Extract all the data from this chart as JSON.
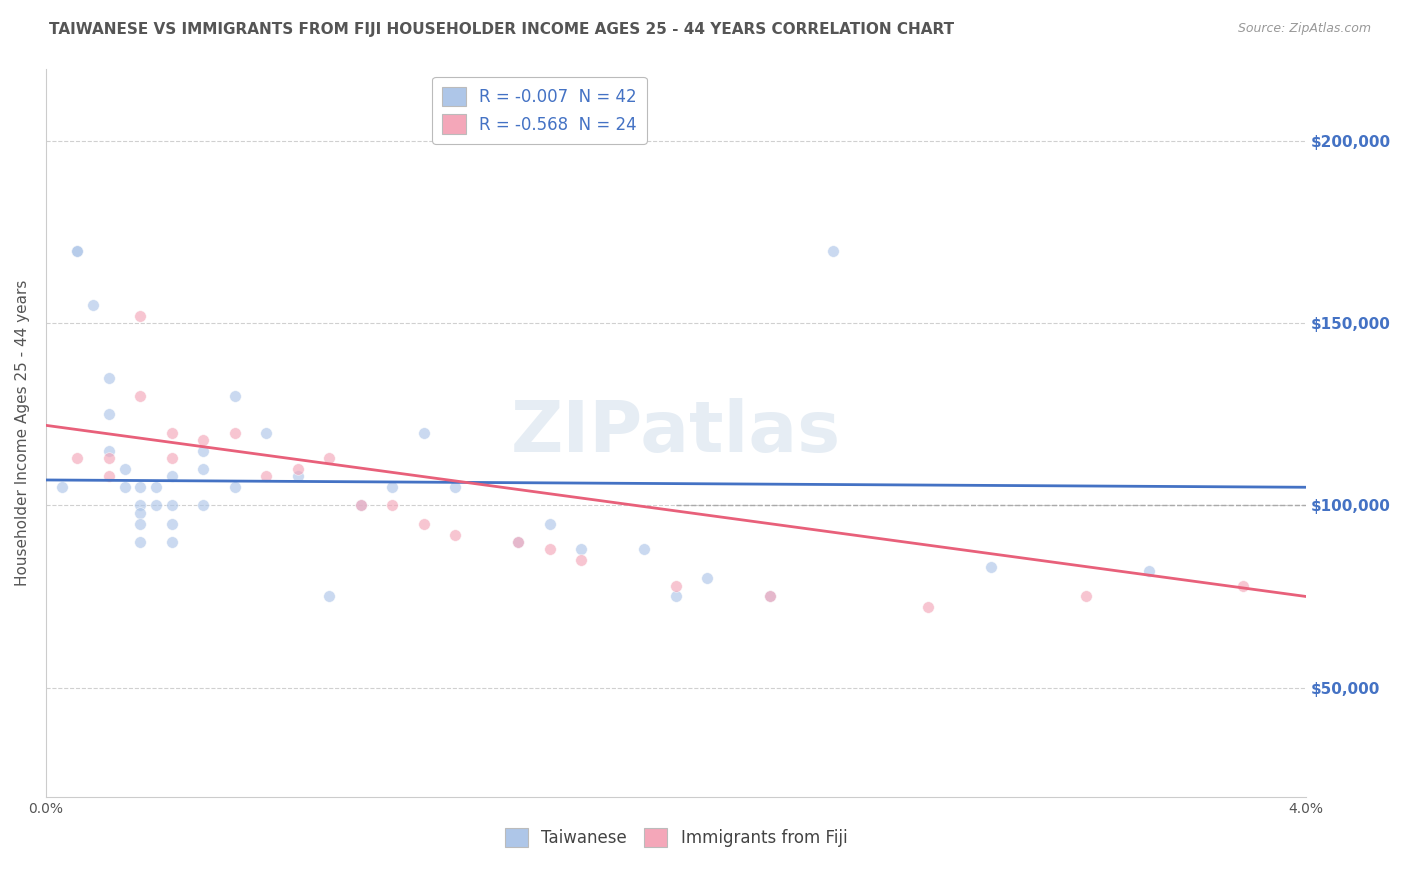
{
  "title": "TAIWANESE VS IMMIGRANTS FROM FIJI HOUSEHOLDER INCOME AGES 25 - 44 YEARS CORRELATION CHART",
  "source": "Source: ZipAtlas.com",
  "ylabel": "Householder Income Ages 25 - 44 years",
  "xlim": [
    0.0,
    0.04
  ],
  "ylim": [
    20000,
    220000
  ],
  "yticks": [
    50000,
    100000,
    150000,
    200000
  ],
  "ytick_labels": [
    "$50,000",
    "$100,000",
    "$150,000",
    "$200,000"
  ],
  "xticks": [
    0.0,
    0.005,
    0.01,
    0.015,
    0.02,
    0.025,
    0.03,
    0.035,
    0.04
  ],
  "xtick_labels": [
    "0.0%",
    "",
    "",
    "",
    "",
    "",
    "",
    "",
    "4.0%"
  ],
  "legend_entries": [
    {
      "label": "R = -0.007  N = 42",
      "color": "#aec6e8"
    },
    {
      "label": "R = -0.568  N = 24",
      "color": "#f4a7b9"
    }
  ],
  "taiwanese_scatter": {
    "color": "#aec6e8",
    "x": [
      0.0005,
      0.001,
      0.001,
      0.0015,
      0.002,
      0.002,
      0.002,
      0.0025,
      0.0025,
      0.003,
      0.003,
      0.003,
      0.003,
      0.003,
      0.0035,
      0.0035,
      0.004,
      0.004,
      0.004,
      0.004,
      0.005,
      0.005,
      0.005,
      0.006,
      0.006,
      0.007,
      0.008,
      0.009,
      0.01,
      0.011,
      0.012,
      0.013,
      0.015,
      0.016,
      0.017,
      0.019,
      0.02,
      0.021,
      0.023,
      0.025,
      0.03,
      0.035
    ],
    "y": [
      105000,
      170000,
      170000,
      155000,
      135000,
      125000,
      115000,
      110000,
      105000,
      105000,
      100000,
      98000,
      95000,
      90000,
      105000,
      100000,
      108000,
      100000,
      95000,
      90000,
      115000,
      110000,
      100000,
      130000,
      105000,
      120000,
      108000,
      75000,
      100000,
      105000,
      120000,
      105000,
      90000,
      95000,
      88000,
      88000,
      75000,
      80000,
      75000,
      170000,
      83000,
      82000
    ]
  },
  "fiji_scatter": {
    "color": "#f4a7b9",
    "x": [
      0.001,
      0.002,
      0.002,
      0.003,
      0.003,
      0.004,
      0.004,
      0.005,
      0.006,
      0.007,
      0.008,
      0.009,
      0.01,
      0.011,
      0.012,
      0.013,
      0.015,
      0.016,
      0.017,
      0.02,
      0.023,
      0.028,
      0.033,
      0.038
    ],
    "y": [
      113000,
      113000,
      108000,
      152000,
      130000,
      120000,
      113000,
      118000,
      120000,
      108000,
      110000,
      113000,
      100000,
      100000,
      95000,
      92000,
      90000,
      88000,
      85000,
      78000,
      75000,
      72000,
      75000,
      78000
    ]
  },
  "taiwanese_line": {
    "color": "#4472c4",
    "x": [
      0.0,
      0.04
    ],
    "y": [
      107000,
      105000
    ]
  },
  "fiji_line": {
    "color": "#e8607a",
    "x": [
      0.0,
      0.04
    ],
    "y": [
      122000,
      75000
    ]
  },
  "dashed_line_y": 100000,
  "dashed_line_x_start": 0.02,
  "background_color": "#ffffff",
  "grid_color": "#d0d0d0",
  "scatter_size": 70,
  "scatter_alpha": 0.65,
  "scatter_edge_color": "#ffffff",
  "watermark_text": "ZIPatlas",
  "title_color": "#555555",
  "source_color": "#999999",
  "axis_label_color": "#555555",
  "tick_label_color_right": "#4472c4",
  "legend_text_color": "#4472c4"
}
